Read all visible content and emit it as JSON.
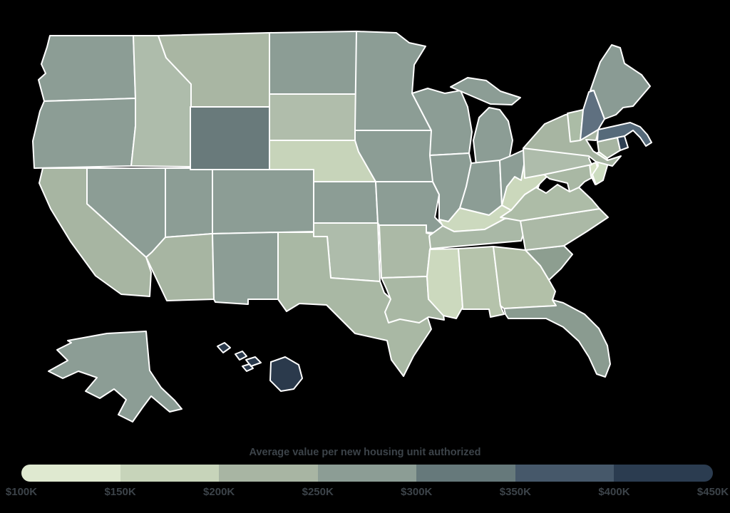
{
  "page": {
    "background_color": "#000000",
    "state_border_color": "#ffffff"
  },
  "chart_data": {
    "type": "choropleth",
    "title": "Average value per new housing unit authorized",
    "region": "United States by state",
    "legend": {
      "position": "bottom",
      "labels": [
        "$100K",
        "$150K",
        "$200K",
        "$250K",
        "$300K",
        "$350K",
        "$400K",
        "$450K"
      ],
      "colors": [
        "#dfe9d0",
        "#c7d4ba",
        "#a8b5a3",
        "#8c9d95",
        "#66797b",
        "#46586a",
        "#2b3c50"
      ],
      "range": [
        "$100K",
        "$450K"
      ]
    },
    "states": [
      {
        "id": "WA",
        "name": "Washington",
        "band": "$250K-$300K",
        "color": "#8c9d95"
      },
      {
        "id": "OR",
        "name": "Oregon",
        "band": "$250K-$300K",
        "color": "#8c9d95"
      },
      {
        "id": "CA",
        "name": "California",
        "band": "$200K-$250K",
        "color": "#a7b5a2"
      },
      {
        "id": "NV",
        "name": "Nevada",
        "band": "$250K-$300K",
        "color": "#8c9d95"
      },
      {
        "id": "ID",
        "name": "Idaho",
        "band": "$200K-$250K",
        "color": "#aebcab"
      },
      {
        "id": "MT",
        "name": "Montana",
        "band": "$200K-$250K",
        "color": "#a9b6a3"
      },
      {
        "id": "WY",
        "name": "Wyoming",
        "band": "$300K-$350K",
        "color": "#697a7b"
      },
      {
        "id": "UT",
        "name": "Utah",
        "band": "$250K-$300K",
        "color": "#8c9d95"
      },
      {
        "id": "CO",
        "name": "Colorado",
        "band": "$250K-$300K",
        "color": "#8c9d95"
      },
      {
        "id": "AZ",
        "name": "Arizona",
        "band": "$200K-$250K",
        "color": "#a7b5a2"
      },
      {
        "id": "NM",
        "name": "New Mexico",
        "band": "$250K-$300K",
        "color": "#8c9d95"
      },
      {
        "id": "ND",
        "name": "North Dakota",
        "band": "$250K-$300K",
        "color": "#8c9d95"
      },
      {
        "id": "SD",
        "name": "South Dakota",
        "band": "$200K-$250K",
        "color": "#b0bdab"
      },
      {
        "id": "NE",
        "name": "Nebraska",
        "band": "$150K-$200K",
        "color": "#c7d4ba"
      },
      {
        "id": "KS",
        "name": "Kansas",
        "band": "$250K-$300K",
        "color": "#8c9d95"
      },
      {
        "id": "OK",
        "name": "Oklahoma",
        "band": "$200K-$250K",
        "color": "#aebcab"
      },
      {
        "id": "TX",
        "name": "Texas",
        "band": "$200K-$250K",
        "color": "#a9b8a4"
      },
      {
        "id": "MN",
        "name": "Minnesota",
        "band": "$250K-$300K",
        "color": "#8c9d95"
      },
      {
        "id": "IA",
        "name": "Iowa",
        "band": "$250K-$300K",
        "color": "#8c9d95"
      },
      {
        "id": "MO",
        "name": "Missouri",
        "band": "$250K-$300K",
        "color": "#8c9d95"
      },
      {
        "id": "AR",
        "name": "Arkansas",
        "band": "$200K-$250K",
        "color": "#abb9a6"
      },
      {
        "id": "LA",
        "name": "Louisiana",
        "band": "$200K-$250K",
        "color": "#a9b8a4"
      },
      {
        "id": "WI",
        "name": "Wisconsin",
        "band": "$250K-$300K",
        "color": "#8c9d95"
      },
      {
        "id": "MI",
        "name": "Michigan",
        "band": "$250K-$300K",
        "color": "#8c9d95"
      },
      {
        "id": "IL",
        "name": "Illinois",
        "band": "$250K-$300K",
        "color": "#8c9d95"
      },
      {
        "id": "IN",
        "name": "Indiana",
        "band": "$250K-$300K",
        "color": "#8c9d95"
      },
      {
        "id": "OH",
        "name": "Ohio",
        "band": "$250K-$300K",
        "color": "#8c9d95"
      },
      {
        "id": "KY",
        "name": "Kentucky",
        "band": "$150K-$200K",
        "color": "#ccd9be"
      },
      {
        "id": "TN",
        "name": "Tennessee",
        "band": "$200K-$250K",
        "color": "#a9b8a6"
      },
      {
        "id": "MS",
        "name": "Mississippi",
        "band": "$150K-$200K",
        "color": "#ccd9be"
      },
      {
        "id": "AL",
        "name": "Alabama",
        "band": "$200K-$250K",
        "color": "#b5c3ab"
      },
      {
        "id": "GA",
        "name": "Georgia",
        "band": "$200K-$250K",
        "color": "#b2c0a8"
      },
      {
        "id": "SC",
        "name": "South Carolina",
        "band": "$250K-$300K",
        "color": "#8d9e90"
      },
      {
        "id": "NC",
        "name": "North Carolina",
        "band": "$200K-$250K",
        "color": "#abb9a6"
      },
      {
        "id": "VA",
        "name": "Virginia",
        "band": "$200K-$250K",
        "color": "#adbca7"
      },
      {
        "id": "WV",
        "name": "West Virginia",
        "band": "$150K-$200K",
        "color": "#cbd8bc"
      },
      {
        "id": "MD",
        "name": "Maryland",
        "band": "$200K-$250K",
        "color": "#a9b8a4"
      },
      {
        "id": "DE",
        "name": "Delaware",
        "band": "$150K-$200K",
        "color": "#d6e2c5"
      },
      {
        "id": "NJ",
        "name": "New Jersey",
        "band": "$150K-$200K",
        "color": "#ccdcc0"
      },
      {
        "id": "PA",
        "name": "Pennsylvania",
        "band": "$200K-$250K",
        "color": "#aebcab"
      },
      {
        "id": "NY",
        "name": "New York",
        "band": "$200K-$250K",
        "color": "#a7b5a2"
      },
      {
        "id": "CT",
        "name": "Connecticut",
        "band": "$200K-$250K",
        "color": "#a7b5a2"
      },
      {
        "id": "VT",
        "name": "Vermont",
        "band": "$200K-$250K",
        "color": "#abbca6"
      },
      {
        "id": "NH",
        "name": "New Hampshire",
        "band": "$350K-$400K",
        "color": "#5f7080"
      },
      {
        "id": "MA",
        "name": "Massachusetts",
        "band": "$350K-$400K",
        "color": "#566a7a"
      },
      {
        "id": "RI",
        "name": "Rhode Island",
        "band": "$400K-$450K",
        "color": "#2e3f52"
      },
      {
        "id": "ME",
        "name": "Maine",
        "band": "$250K-$300K",
        "color": "#8a9b94"
      },
      {
        "id": "FL",
        "name": "Florida",
        "band": "$250K-$300K",
        "color": "#8a9b90"
      },
      {
        "id": "AK",
        "name": "Alaska",
        "band": "$250K-$300K",
        "color": "#8c9d95"
      },
      {
        "id": "HI",
        "name": "Hawaii",
        "band": "$400K-$450K",
        "color": "#2b3a4c"
      }
    ]
  }
}
